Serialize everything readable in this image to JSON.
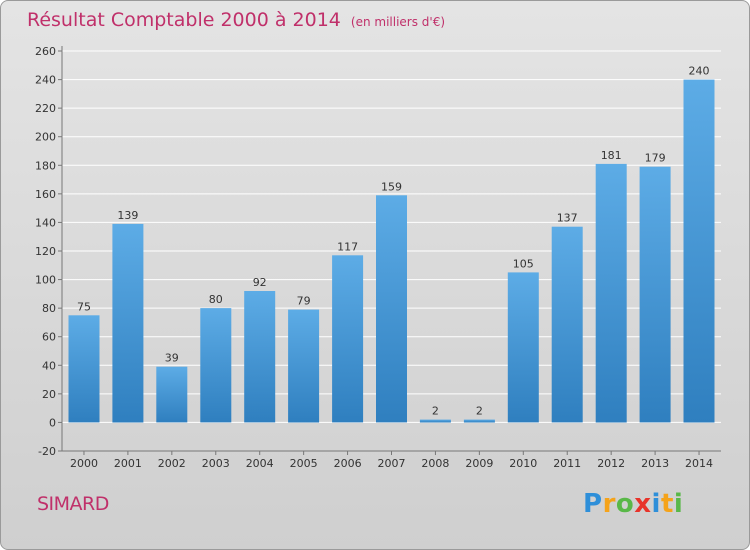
{
  "header": {
    "title": "Résultat Comptable 2000 à 2014",
    "subtitle": "(en milliers d'€)"
  },
  "commune": "SIMARD",
  "logo": {
    "text": "Proxiti",
    "letters": [
      "P",
      "r",
      "o",
      "x",
      "i",
      "t",
      "i"
    ],
    "colors": [
      "#2e8fd9",
      "#f5a31a",
      "#59b848",
      "#e8332a",
      "#2e8fd9",
      "#f5a31a",
      "#59b848"
    ]
  },
  "colors": {
    "title": "#c0306a",
    "bar_top": "#5dace6",
    "bar_bottom": "#2f7fbf",
    "grid": "#ffffff",
    "axis_text": "#333333"
  },
  "chart_data": {
    "type": "bar",
    "categories": [
      "2000",
      "2001",
      "2002",
      "2003",
      "2004",
      "2005",
      "2006",
      "2007",
      "2008",
      "2009",
      "2010",
      "2011",
      "2012",
      "2013",
      "2014"
    ],
    "values": [
      75,
      139,
      39,
      80,
      92,
      79,
      117,
      159,
      2,
      2,
      105,
      137,
      181,
      179,
      240
    ],
    "data_labels": [
      "75",
      "139",
      "39",
      "80",
      "92",
      "79",
      "117",
      "159",
      "2",
      "2",
      "105",
      "137",
      "181",
      "179",
      "240"
    ],
    "yticks": [
      -20,
      0,
      20,
      40,
      60,
      80,
      100,
      120,
      140,
      160,
      180,
      200,
      220,
      240,
      260
    ],
    "ylim": [
      -20,
      260
    ],
    "grid": true,
    "legend": "none"
  }
}
